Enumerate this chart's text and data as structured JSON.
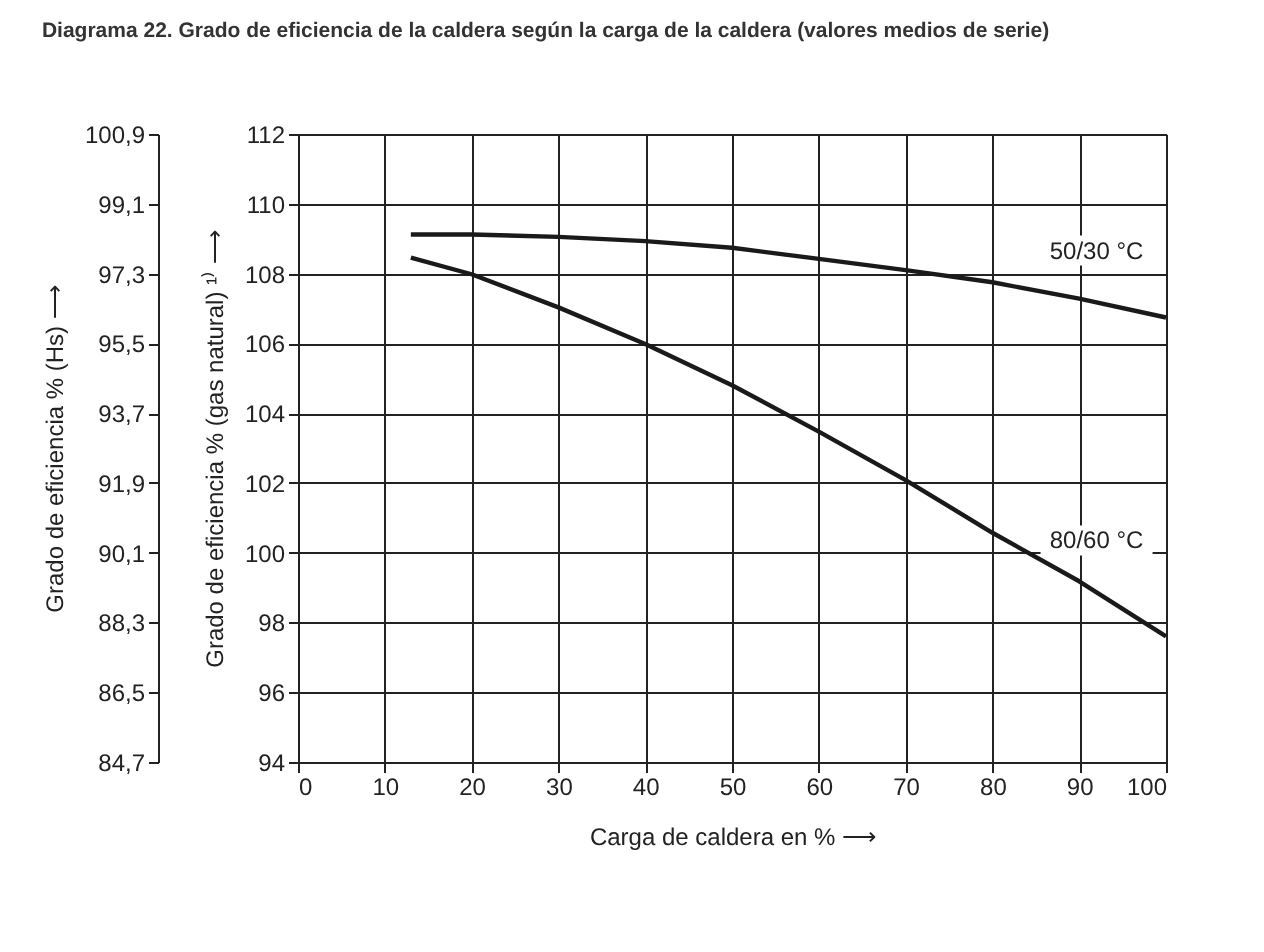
{
  "chart_data": {
    "type": "line",
    "title": "Diagrama 22. Grado de eficiencia de la caldera según la carga de la caldera (valores medios de serie)",
    "xlabel": "Carga de caldera en %  ⟶",
    "ylabel": "Grado de eficiencia % (gas natural) ¹⁾  ⟶",
    "y2label": "Grado de eficiencia % (Hs)  ⟶",
    "series": [
      {
        "color": "#1a1a1a",
        "x": [
          13,
          20,
          30,
          40,
          50,
          60,
          70,
          80,
          90,
          100
        ],
        "values": [
          109.12,
          109.12,
          109.05,
          108.93,
          108.74,
          108.42,
          108.1,
          107.75,
          107.28,
          106.74
        ]
      },
      {
        "color": "#1a1a1a",
        "x": [
          13,
          20,
          30,
          40,
          50,
          60,
          70,
          80,
          90,
          100
        ],
        "values": [
          108.46,
          107.98,
          107.03,
          105.98,
          104.8,
          103.47,
          102.08,
          100.57,
          99.18,
          97.6
        ]
      }
    ],
    "annotations": [
      {
        "text": "50/30 °C",
        "x": 92,
        "y": 107.17
      },
      {
        "text": "80/60 °C",
        "x": 92,
        "y": 98.86
      }
    ],
    "xlim": [
      0,
      100
    ],
    "xticks": [
      0,
      10,
      20,
      30,
      40,
      50,
      60,
      70,
      80,
      90,
      100
    ],
    "ylim": [
      94,
      112
    ],
    "yticks": [
      94,
      96,
      98,
      100,
      102,
      104,
      106,
      108,
      110,
      112
    ],
    "y2lim": [
      84.7,
      100.9
    ],
    "y2ticks": [
      {
        "value": 84.7,
        "label": "84,7"
      },
      {
        "value": 86.5,
        "label": "86,5"
      },
      {
        "value": 88.3,
        "label": "88,3"
      },
      {
        "value": 90.1,
        "label": "90,1"
      },
      {
        "value": 91.9,
        "label": "91,9"
      },
      {
        "value": 93.7,
        "label": "93,7"
      },
      {
        "value": 95.5,
        "label": "95,5"
      },
      {
        "value": 97.3,
        "label": "97,3"
      },
      {
        "value": 99.1,
        "label": "99,1"
      },
      {
        "value": 100.9,
        "label": "100,9"
      }
    ],
    "grid": true,
    "legend": false
  }
}
